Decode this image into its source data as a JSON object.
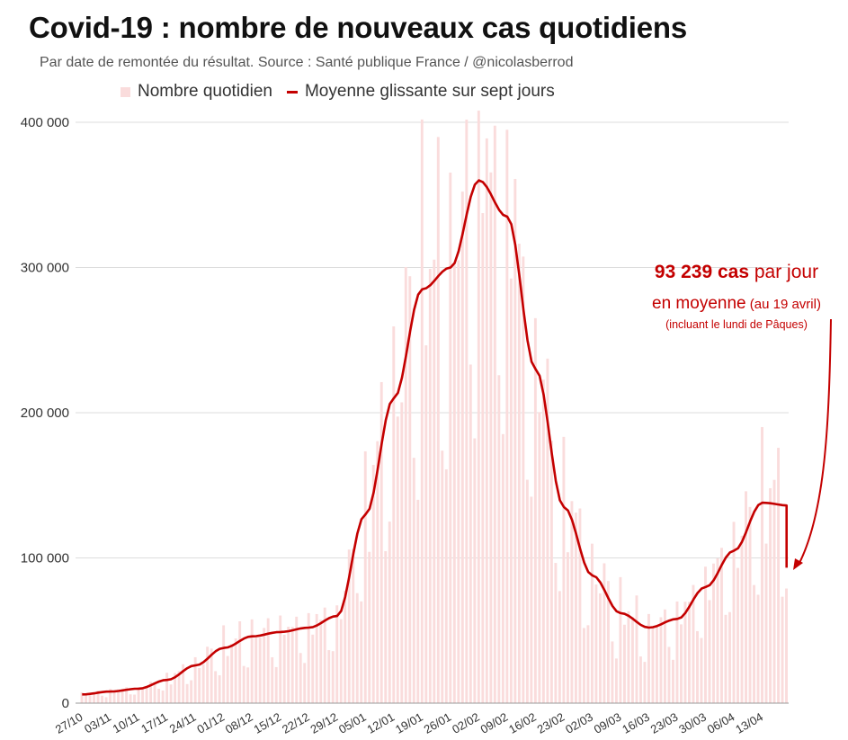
{
  "title": "Covid-19 : nombre de nouveaux cas quotidiens",
  "subtitle": "Par date de remontée du résultat. Source : Santé publique France / @nicolasberrod",
  "legend": {
    "bars": "Nombre quotidien",
    "line": "Moyenne glissante sur sept jours"
  },
  "annotation": {
    "value": "93 239 cas",
    "per_day": " par jour",
    "line2": "en moyenne",
    "line2_small": " (au 19 avril)",
    "line3": "(incluant le lundi de Pâques)"
  },
  "colors": {
    "bar": "#fadcdc",
    "line": "#c40000",
    "grid": "#dddddd",
    "text": "#222222"
  },
  "chart_data": {
    "type": "bar",
    "title": "Covid-19 : nombre de nouveaux cas quotidiens",
    "xlabel": "",
    "ylabel": "",
    "ylim": [
      0,
      400000
    ],
    "y_ticks": [
      0,
      100000,
      200000,
      300000,
      400000
    ],
    "y_tick_labels": [
      "0",
      "100 000",
      "200 000",
      "300 000",
      "400 000"
    ],
    "x_tick_labels": [
      "27/10",
      "03/11",
      "10/11",
      "17/11",
      "24/11",
      "01/12",
      "08/12",
      "15/12",
      "22/12",
      "29/12",
      "05/01",
      "12/01",
      "19/01",
      "26/01",
      "02/02",
      "09/02",
      "16/02",
      "23/02",
      "02/03",
      "09/03",
      "16/03",
      "23/03",
      "30/03",
      "06/04",
      "13/04"
    ],
    "start_date": "27/10",
    "n_days": 175,
    "weekly_anchors": [
      6000,
      8000,
      10000,
      16000,
      26000,
      38000,
      46000,
      49000,
      52000,
      60000,
      130000,
      210000,
      285000,
      300000,
      360000,
      335000,
      230000,
      135000,
      88000,
      62000,
      52000,
      58000,
      80000,
      105000,
      138000,
      136000,
      118000,
      93239
    ],
    "series": [
      {
        "name": "Nombre quotidien",
        "type": "bar"
      },
      {
        "name": "Moyenne glissante sur sept jours",
        "type": "line"
      }
    ],
    "last_value": 93239
  }
}
